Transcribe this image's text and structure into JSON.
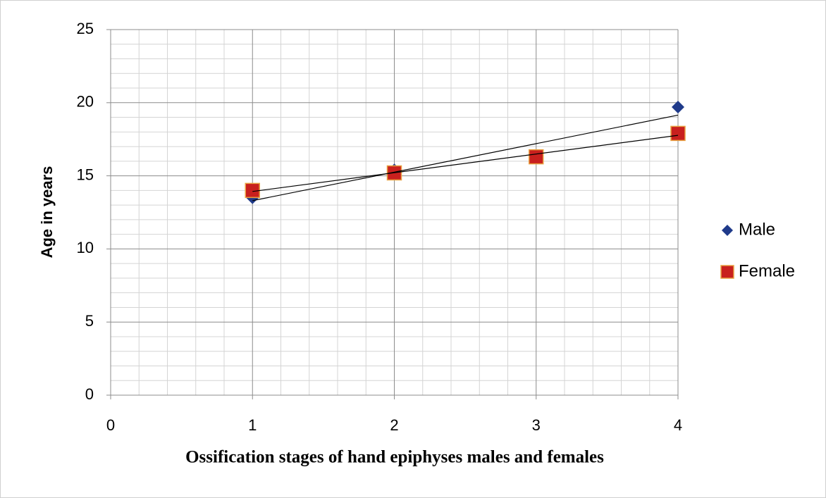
{
  "chart_data": {
    "type": "scatter",
    "x_label": "Ossification stages of hand epiphyses males and females",
    "y_label": "Age in years",
    "series": [
      {
        "name": "Male",
        "color": "#1f3a8a",
        "marker": "diamond",
        "x": [
          1,
          2,
          3,
          4
        ],
        "values": [
          13.5,
          15.4,
          16.3,
          19.7
        ]
      },
      {
        "name": "Female",
        "color": "#c8201e",
        "marker": "square",
        "x": [
          1,
          2,
          3,
          4
        ],
        "values": [
          14,
          15.2,
          16.3,
          17.9
        ]
      }
    ],
    "trendline": "linear",
    "xlim": [
      0,
      4
    ],
    "xticks": [
      0,
      1,
      2,
      3,
      4
    ],
    "ylim": [
      0,
      25
    ],
    "yticks": [
      0,
      5,
      10,
      15,
      20,
      25
    ],
    "grid": true,
    "minor_grid": true,
    "legend": "right"
  }
}
